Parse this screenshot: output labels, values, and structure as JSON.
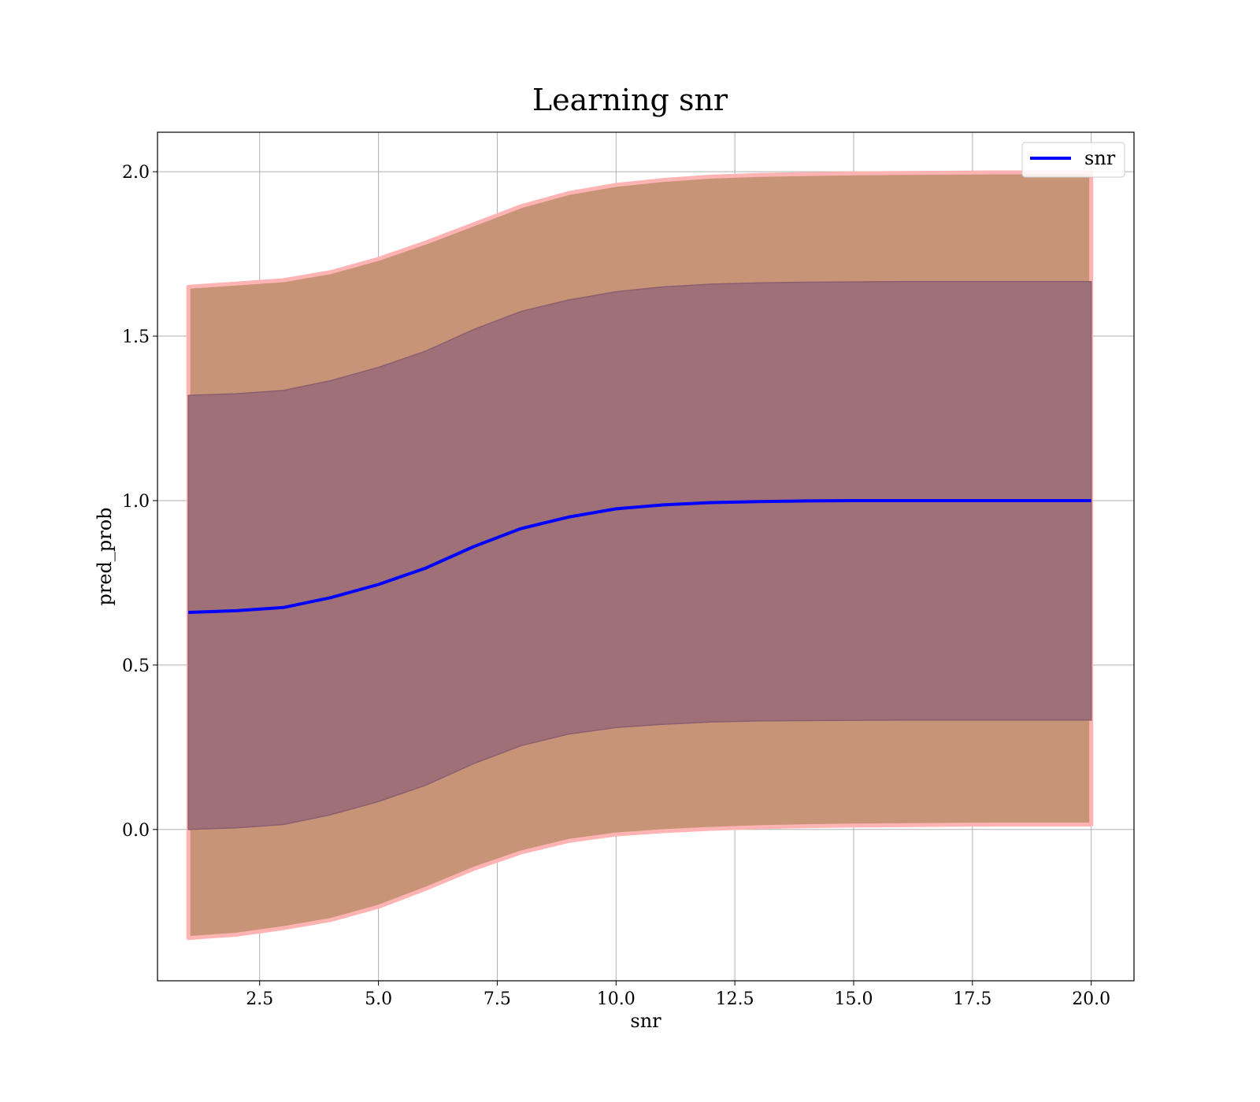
{
  "chart_data": {
    "type": "area",
    "title": "Learning snr",
    "xlabel": "snr",
    "ylabel": "pred_prob",
    "xlim": [
      0.35,
      20.9
    ],
    "ylim": [
      -0.46,
      2.12
    ],
    "xticks": [
      2.5,
      5.0,
      7.5,
      10.0,
      12.5,
      15.0,
      17.5,
      20.0
    ],
    "xtick_labels": [
      "2.5",
      "5.0",
      "7.5",
      "10.0",
      "12.5",
      "15.0",
      "17.5",
      "20.0"
    ],
    "yticks": [
      0.0,
      0.5,
      1.0,
      1.5,
      2.0
    ],
    "ytick_labels": [
      "0.0",
      "0.5",
      "1.0",
      "1.5",
      "2.0"
    ],
    "grid": true,
    "legend_position": "top-right",
    "colors": {
      "line": "#0000ff",
      "band_outer_edge": "#ffb3b3",
      "band_2sd": "#c89478",
      "band_1sd": "#a07078",
      "grid": "#b0b0b0"
    },
    "x": [
      1.0,
      2.0,
      3.0,
      4.0,
      5.0,
      6.0,
      7.0,
      8.0,
      9.0,
      10.0,
      11.0,
      12.0,
      13.0,
      14.0,
      15.0,
      16.0,
      17.0,
      18.0,
      19.0,
      20.0
    ],
    "series": [
      {
        "name": "snr",
        "values": [
          0.66,
          0.665,
          0.675,
          0.705,
          0.745,
          0.795,
          0.86,
          0.915,
          0.95,
          0.975,
          0.987,
          0.994,
          0.997,
          0.999,
          1.0,
          1.0,
          1.0,
          1.0,
          1.0,
          1.0
        ]
      }
    ],
    "bands": [
      {
        "role": "mean ± 2 std",
        "lower": [
          -0.33,
          -0.32,
          -0.3,
          -0.275,
          -0.235,
          -0.18,
          -0.12,
          -0.07,
          -0.035,
          -0.015,
          -0.005,
          0.002,
          0.007,
          0.01,
          0.012,
          0.013,
          0.014,
          0.015,
          0.015,
          0.015
        ],
        "upper": [
          1.65,
          1.66,
          1.67,
          1.695,
          1.735,
          1.785,
          1.84,
          1.895,
          1.935,
          1.96,
          1.975,
          1.985,
          1.99,
          1.993,
          1.995,
          1.996,
          1.997,
          1.998,
          1.998,
          1.998
        ]
      },
      {
        "role": "mean ± 1 std",
        "lower": [
          0.0,
          0.005,
          0.015,
          0.045,
          0.085,
          0.135,
          0.2,
          0.255,
          0.29,
          0.31,
          0.32,
          0.327,
          0.33,
          0.331,
          0.332,
          0.333,
          0.333,
          0.333,
          0.333,
          0.333
        ],
        "upper": [
          1.32,
          1.325,
          1.335,
          1.365,
          1.405,
          1.455,
          1.52,
          1.575,
          1.61,
          1.635,
          1.65,
          1.658,
          1.662,
          1.664,
          1.665,
          1.666,
          1.666,
          1.666,
          1.666,
          1.666
        ]
      }
    ]
  }
}
